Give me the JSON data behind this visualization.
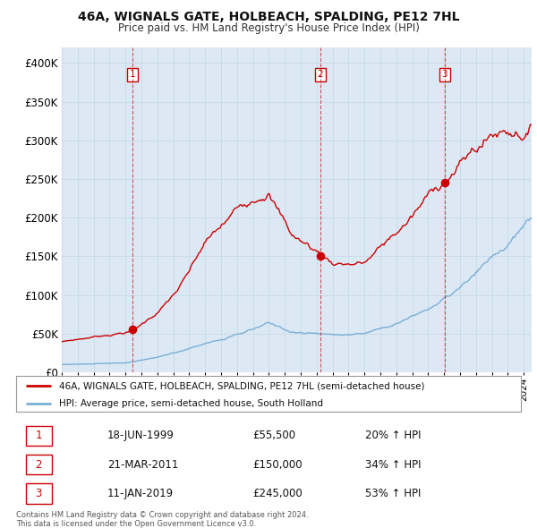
{
  "title": "46A, WIGNALS GATE, HOLBEACH, SPALDING, PE12 7HL",
  "subtitle": "Price paid vs. HM Land Registry's House Price Index (HPI)",
  "bg_color": "#dce9f5",
  "fig_color": "#ffffff",
  "red_color": "#cc0000",
  "blue_color": "#7aaed6",
  "grid_color": "#c8d8e8",
  "ylim": [
    0,
    420000
  ],
  "yticks": [
    0,
    50000,
    100000,
    150000,
    200000,
    250000,
    300000,
    350000,
    400000
  ],
  "ytick_labels": [
    "£0",
    "£50K",
    "£100K",
    "£150K",
    "£200K",
    "£250K",
    "£300K",
    "£350K",
    "£400K"
  ],
  "sale1": {
    "date_num": 1999.46,
    "price": 55500,
    "label": "1"
  },
  "sale2": {
    "date_num": 2011.22,
    "price": 150000,
    "label": "2"
  },
  "sale3": {
    "date_num": 2019.03,
    "price": 245000,
    "label": "3"
  },
  "legend_line1": "46A, WIGNALS GATE, HOLBEACH, SPALDING, PE12 7HL (semi-detached house)",
  "legend_line2": "HPI: Average price, semi-detached house, South Holland",
  "footnote1": "Contains HM Land Registry data © Crown copyright and database right 2024.",
  "footnote2": "This data is licensed under the Open Government Licence v3.0.",
  "table_rows": [
    {
      "num": "1",
      "date": "18-JUN-1999",
      "price": "£55,500",
      "pct": "20% ↑ HPI"
    },
    {
      "num": "2",
      "date": "21-MAR-2011",
      "price": "£150,000",
      "pct": "34% ↑ HPI"
    },
    {
      "num": "3",
      "date": "11-JAN-2019",
      "price": "£245,000",
      "pct": "53% ↑ HPI"
    }
  ]
}
